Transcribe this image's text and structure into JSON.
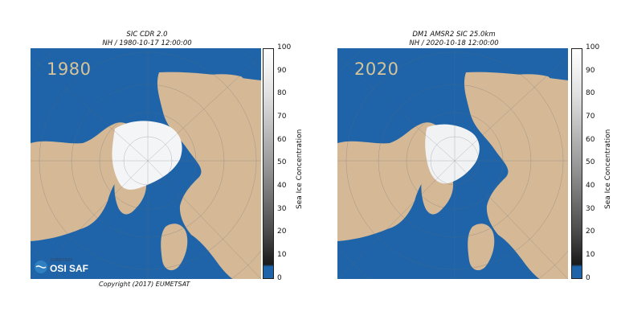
{
  "panels": [
    {
      "title_line1": "SIC CDR 2.0",
      "title_line2": "NH / 1980-10-17 12:00:00",
      "year_label": "1980",
      "colorbar_ticks": [
        "100",
        "90",
        "80",
        "70",
        "60",
        "50",
        "40",
        "30",
        "20",
        "10",
        "0"
      ],
      "colorbar_label": "Sea Ice Concentration"
    },
    {
      "title_line1": "DM1 AMSR2 SIC 25.0km",
      "title_line2": "NH / 2020-10-18 12:00:00",
      "year_label": "2020",
      "colorbar_ticks": [
        "100",
        "90",
        "80",
        "70",
        "60",
        "50",
        "40",
        "30",
        "20",
        "10",
        "0"
      ],
      "colorbar_label": "Sea Ice Concentration"
    }
  ],
  "logo": {
    "org": "EUMETSAT",
    "name": "OSI SAF"
  },
  "copyright": "Copyright (2017)  EUMETSAT",
  "colors": {
    "ocean": "#1f64a8",
    "land": "#d5b895",
    "ice": "#f4f5f7",
    "colorbar_low": "#1f64a8"
  }
}
